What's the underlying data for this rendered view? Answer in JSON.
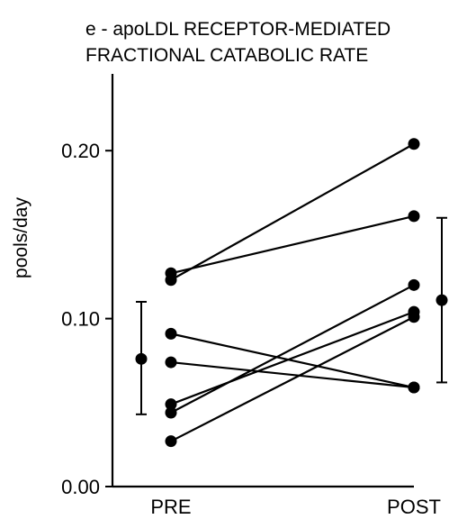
{
  "chart_data": {
    "type": "scatter",
    "title": "e - apoLDL RECEPTOR-MEDIATED\nFRACTIONAL CATABOLIC RATE",
    "xlabel": "",
    "ylabel": "pools/day",
    "categories": [
      "PRE",
      "POST"
    ],
    "ylim": [
      0.0,
      0.25
    ],
    "yticks": [
      0.0,
      0.1,
      0.2
    ],
    "ytick_labels": [
      "0.00",
      "0.10",
      "0.20"
    ],
    "grid": false,
    "legend": "none",
    "paired_subjects": [
      {
        "pre": 0.127,
        "post": 0.161
      },
      {
        "pre": 0.123,
        "post": 0.204
      },
      {
        "pre": 0.091,
        "post": 0.059
      },
      {
        "pre": 0.074,
        "post": 0.059
      },
      {
        "pre": 0.049,
        "post": 0.104
      },
      {
        "pre": 0.044,
        "post": 0.12
      },
      {
        "pre": 0.027,
        "post": 0.101
      }
    ],
    "summary": [
      {
        "category": "PRE",
        "mean": 0.076,
        "lower": 0.043,
        "upper": 0.11
      },
      {
        "category": "POST",
        "mean": 0.111,
        "lower": 0.062,
        "upper": 0.16
      }
    ],
    "colors": {
      "ink": "#000000",
      "background": "#ffffff"
    }
  }
}
